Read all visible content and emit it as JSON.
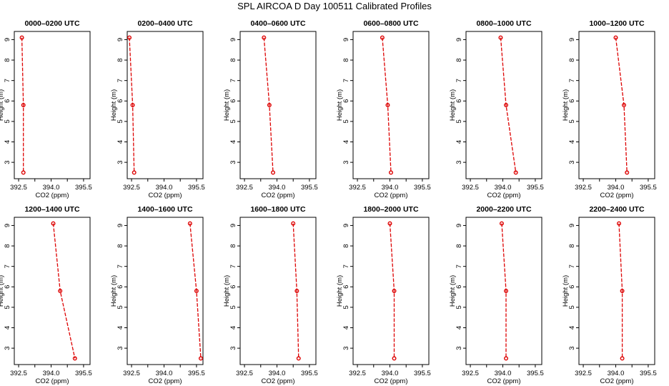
{
  "title": "SPL AIRCOA D  Day 100511  Calibrated Profiles",
  "colors": {
    "series": "#dd0000",
    "axes": "#000000"
  },
  "chart_data": [
    {
      "type": "line",
      "title": "0000–0200 UTC",
      "xlabel": "CO2 (ppm)",
      "ylabel": "Height (m)",
      "xlim": [
        392.3,
        395.8
      ],
      "ylim": [
        2.2,
        9.4
      ],
      "xticks": [
        "392.5",
        "394.0",
        "395.5"
      ],
      "xticks_minor": [
        393.25,
        394.75
      ],
      "yticks": [
        "3",
        "4",
        "5",
        "6",
        "7",
        "8",
        "9"
      ],
      "x": [
        392.65,
        392.72,
        392.72
      ],
      "y": [
        9.1,
        5.8,
        2.5
      ]
    },
    {
      "type": "line",
      "title": "0200–0400 UTC",
      "xlabel": "CO2 (ppm)",
      "ylabel": "Height (m)",
      "xlim": [
        392.3,
        395.8
      ],
      "ylim": [
        2.2,
        9.4
      ],
      "xticks": [
        "392.5",
        "394.0",
        "395.5"
      ],
      "xticks_minor": [
        393.25,
        394.75
      ],
      "yticks": [
        "3",
        "4",
        "5",
        "6",
        "7",
        "8",
        "9"
      ],
      "x": [
        392.4,
        392.55,
        392.62
      ],
      "y": [
        9.1,
        5.8,
        2.5
      ]
    },
    {
      "type": "line",
      "title": "0400–0600 UTC",
      "xlabel": "CO2 (ppm)",
      "ylabel": "Height (m)",
      "xlim": [
        392.3,
        395.8
      ],
      "ylim": [
        2.2,
        9.4
      ],
      "xticks": [
        "392.5",
        "394.0",
        "395.5"
      ],
      "xticks_minor": [
        393.25,
        394.75
      ],
      "yticks": [
        "3",
        "4",
        "5",
        "6",
        "7",
        "8",
        "9"
      ],
      "x": [
        393.4,
        393.65,
        393.82
      ],
      "y": [
        9.1,
        5.8,
        2.5
      ]
    },
    {
      "type": "line",
      "title": "0600–0800 UTC",
      "xlabel": "CO2 (ppm)",
      "ylabel": "Height (m)",
      "xlim": [
        392.3,
        395.8
      ],
      "ylim": [
        2.2,
        9.4
      ],
      "xticks": [
        "392.5",
        "394.0",
        "395.5"
      ],
      "xticks_minor": [
        393.25,
        394.75
      ],
      "yticks": [
        "3",
        "4",
        "5",
        "6",
        "7",
        "8",
        "9"
      ],
      "x": [
        393.65,
        393.9,
        394.05
      ],
      "y": [
        9.1,
        5.8,
        2.5
      ]
    },
    {
      "type": "line",
      "title": "0800–1000 UTC",
      "xlabel": "CO2 (ppm)",
      "ylabel": "Height (m)",
      "xlim": [
        392.3,
        395.8
      ],
      "ylim": [
        2.2,
        9.4
      ],
      "xticks": [
        "392.5",
        "394.0",
        "395.5"
      ],
      "xticks_minor": [
        393.25,
        394.75
      ],
      "yticks": [
        "3",
        "4",
        "5",
        "6",
        "7",
        "8",
        "9"
      ],
      "x": [
        393.9,
        394.15,
        394.6
      ],
      "y": [
        9.1,
        5.8,
        2.5
      ]
    },
    {
      "type": "line",
      "title": "1000–1200 UTC",
      "xlabel": "CO2 (ppm)",
      "ylabel": "Height (m)",
      "xlim": [
        392.3,
        395.8
      ],
      "ylim": [
        2.2,
        9.4
      ],
      "xticks": [
        "392.5",
        "394.0",
        "395.5"
      ],
      "xticks_minor": [
        393.25,
        394.75
      ],
      "yticks": [
        "3",
        "4",
        "5",
        "6",
        "7",
        "8",
        "9"
      ],
      "x": [
        394.0,
        394.38,
        394.52
      ],
      "y": [
        9.1,
        5.8,
        2.5
      ]
    },
    {
      "type": "line",
      "title": "1200–1400 UTC",
      "xlabel": "CO2 (ppm)",
      "ylabel": "Height (m)",
      "xlim": [
        392.3,
        395.8
      ],
      "ylim": [
        2.2,
        9.4
      ],
      "xticks": [
        "392.5",
        "394.0",
        "395.5"
      ],
      "xticks_minor": [
        393.25,
        394.75
      ],
      "yticks": [
        "3",
        "4",
        "5",
        "6",
        "7",
        "8",
        "9"
      ],
      "x": [
        394.1,
        394.42,
        395.1
      ],
      "y": [
        9.1,
        5.8,
        2.5
      ]
    },
    {
      "type": "line",
      "title": "1400–1600 UTC",
      "xlabel": "CO2 (ppm)",
      "ylabel": "Height (m)",
      "xlim": [
        392.3,
        395.8
      ],
      "ylim": [
        2.2,
        9.4
      ],
      "xticks": [
        "392.5",
        "394.0",
        "395.5"
      ],
      "xticks_minor": [
        393.25,
        394.75
      ],
      "yticks": [
        "3",
        "4",
        "5",
        "6",
        "7",
        "8",
        "9"
      ],
      "x": [
        395.2,
        395.5,
        395.7
      ],
      "y": [
        9.1,
        5.8,
        2.5
      ]
    },
    {
      "type": "line",
      "title": "1600–1800 UTC",
      "xlabel": "CO2 (ppm)",
      "ylabel": "Height (m)",
      "xlim": [
        392.3,
        395.8
      ],
      "ylim": [
        2.2,
        9.4
      ],
      "xticks": [
        "392.5",
        "394.0",
        "395.5"
      ],
      "xticks_minor": [
        393.25,
        394.75
      ],
      "yticks": [
        "3",
        "4",
        "5",
        "6",
        "7",
        "8",
        "9"
      ],
      "x": [
        394.75,
        394.92,
        395.0
      ],
      "y": [
        9.1,
        5.8,
        2.5
      ]
    },
    {
      "type": "line",
      "title": "1800–2000 UTC",
      "xlabel": "CO2 (ppm)",
      "ylabel": "Height (m)",
      "xlim": [
        392.3,
        395.8
      ],
      "ylim": [
        2.2,
        9.4
      ],
      "xticks": [
        "392.5",
        "394.0",
        "395.5"
      ],
      "xticks_minor": [
        393.25,
        394.75
      ],
      "yticks": [
        "3",
        "4",
        "5",
        "6",
        "7",
        "8",
        "9"
      ],
      "x": [
        394.0,
        394.2,
        394.2
      ],
      "y": [
        9.1,
        5.8,
        2.5
      ]
    },
    {
      "type": "line",
      "title": "2000–2200 UTC",
      "xlabel": "CO2 (ppm)",
      "ylabel": "Height (m)",
      "xlim": [
        392.3,
        395.8
      ],
      "ylim": [
        2.2,
        9.4
      ],
      "xticks": [
        "392.5",
        "394.0",
        "395.5"
      ],
      "xticks_minor": [
        393.25,
        394.75
      ],
      "yticks": [
        "3",
        "4",
        "5",
        "6",
        "7",
        "8",
        "9"
      ],
      "x": [
        393.95,
        394.15,
        394.15
      ],
      "y": [
        9.1,
        5.8,
        2.5
      ]
    },
    {
      "type": "line",
      "title": "2200–2400 UTC",
      "xlabel": "CO2 (ppm)",
      "ylabel": "Height (m)",
      "xlim": [
        392.3,
        395.8
      ],
      "ylim": [
        2.2,
        9.4
      ],
      "xticks": [
        "392.5",
        "394.0",
        "395.5"
      ],
      "xticks_minor": [
        393.25,
        394.75
      ],
      "yticks": [
        "3",
        "4",
        "5",
        "6",
        "7",
        "8",
        "9"
      ],
      "x": [
        394.15,
        394.3,
        394.3
      ],
      "y": [
        9.1,
        5.8,
        2.5
      ]
    }
  ]
}
